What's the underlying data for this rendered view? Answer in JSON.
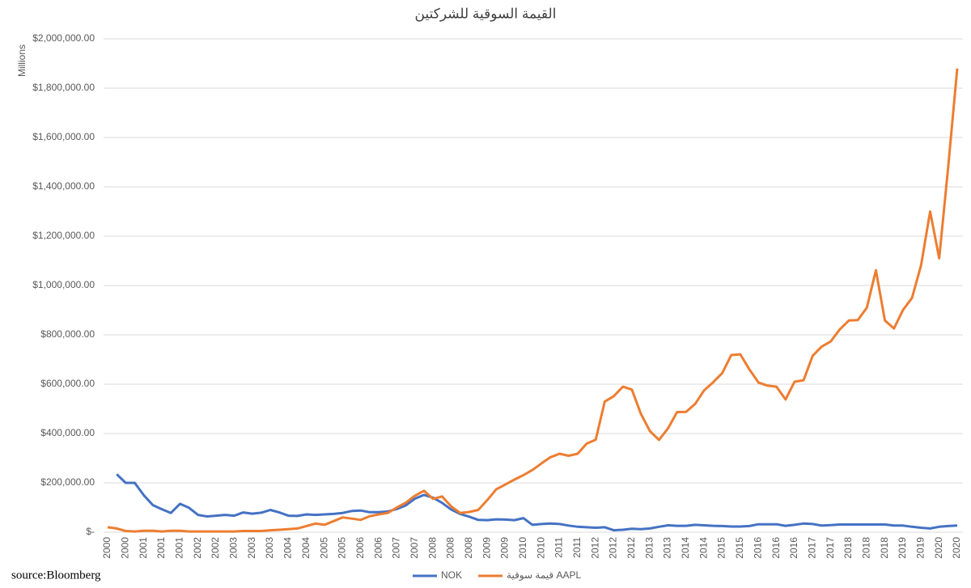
{
  "chart_data": {
    "type": "line",
    "title": "القيمة السوقية للشركتين",
    "y_label": "Millions",
    "source": "source:Bloomberg",
    "categories": [
      "2000",
      null,
      "2000",
      null,
      "2001",
      null,
      "2001",
      null,
      "2001",
      null,
      "2002",
      null,
      "2002",
      null,
      "2003",
      null,
      "2003",
      null,
      "2003",
      null,
      "2004",
      null,
      "2004",
      null,
      "2005",
      null,
      "2005",
      null,
      "2006",
      null,
      "2006",
      null,
      "2007",
      null,
      "2007",
      null,
      "2008",
      null,
      "2008",
      null,
      "2008",
      null,
      "2009",
      null,
      "2009",
      null,
      "2010",
      null,
      "2010",
      null,
      "2011",
      null,
      "2011",
      null,
      "2012",
      null,
      "2012",
      null,
      "2012",
      null,
      "2013",
      null,
      "2013",
      null,
      "2014",
      null,
      "2014",
      null,
      "2015",
      null,
      "2015",
      null,
      "2016",
      null,
      "2016",
      null,
      "2016",
      null,
      "2017",
      null,
      "2017",
      null,
      "2018",
      null,
      "2018",
      null,
      "2018",
      null,
      "2019",
      null,
      "2019",
      null,
      "2020",
      null,
      "2020"
    ],
    "series": [
      {
        "name": "NOK",
        "color": "#4472c4",
        "values": [
          null,
          235000,
          200000,
          200000,
          150000,
          110000,
          93000,
          78000,
          115000,
          99000,
          70000,
          64000,
          67000,
          70000,
          67000,
          80000,
          75000,
          79000,
          90000,
          80000,
          67000,
          66000,
          72000,
          70000,
          72000,
          74000,
          78000,
          86000,
          88000,
          81000,
          81000,
          84000,
          94000,
          109000,
          136000,
          151000,
          140000,
          119000,
          92000,
          74000,
          63000,
          50000,
          49000,
          52000,
          51000,
          49000,
          57000,
          30000,
          33000,
          35000,
          33000,
          27000,
          22000,
          20000,
          18000,
          20000,
          8000,
          10000,
          14000,
          12000,
          15000,
          22000,
          28000,
          26000,
          26000,
          30000,
          28000,
          26000,
          25000,
          23000,
          23000,
          25000,
          32000,
          32000,
          32000,
          26000,
          30000,
          35000,
          33000,
          27000,
          29000,
          31000,
          31000,
          31000,
          31000,
          31000,
          31000,
          27000,
          27000,
          22000,
          18000,
          15000,
          22000,
          25000,
          27000
        ]
      },
      {
        "name": "قيمة سوقية AAPL",
        "color": "#ed7d31",
        "values": [
          20000,
          15000,
          5000,
          3000,
          6000,
          6000,
          3000,
          6000,
          6000,
          3000,
          3000,
          3000,
          3000,
          3000,
          3000,
          5000,
          5000,
          5000,
          8000,
          10000,
          12000,
          15000,
          25000,
          35000,
          30000,
          45000,
          60000,
          55000,
          50000,
          65000,
          72000,
          78000,
          100000,
          120000,
          148000,
          168000,
          135000,
          145000,
          105000,
          78000,
          82000,
          90000,
          130000,
          174000,
          193000,
          213000,
          231000,
          252000,
          279000,
          304000,
          318000,
          310000,
          318000,
          359000,
          375000,
          530000,
          551000,
          590000,
          578000,
          480000,
          410000,
          374000,
          421000,
          487000,
          488000,
          520000,
          575000,
          608000,
          645000,
          718000,
          721000,
          660000,
          607000,
          594000,
          590000,
          538000,
          610000,
          616000,
          715000,
          752000,
          773000,
          822000,
          858000,
          860000,
          910000,
          1062000,
          858000,
          826000,
          901000,
          950000,
          1082000,
          1300000,
          1110000,
          1480000,
          1880000
        ]
      }
    ],
    "ylim": [
      0,
      2000000
    ],
    "yticks": [
      {
        "value": 0,
        "label": "$-"
      },
      {
        "value": 200000,
        "label": "$200,000.00"
      },
      {
        "value": 400000,
        "label": "$400,000.00"
      },
      {
        "value": 600000,
        "label": "$600,000.00"
      },
      {
        "value": 800000,
        "label": "$800,000.00"
      },
      {
        "value": 1000000,
        "label": "$1,000,000.00"
      },
      {
        "value": 1200000,
        "label": "$1,200,000.00"
      },
      {
        "value": 1400000,
        "label": "$1,400,000.00"
      },
      {
        "value": 1600000,
        "label": "$1,600,000.00"
      },
      {
        "value": 1800000,
        "label": "$1,800,000.00"
      },
      {
        "value": 2000000,
        "label": "$2,000,000.00"
      }
    ],
    "grid": true
  }
}
